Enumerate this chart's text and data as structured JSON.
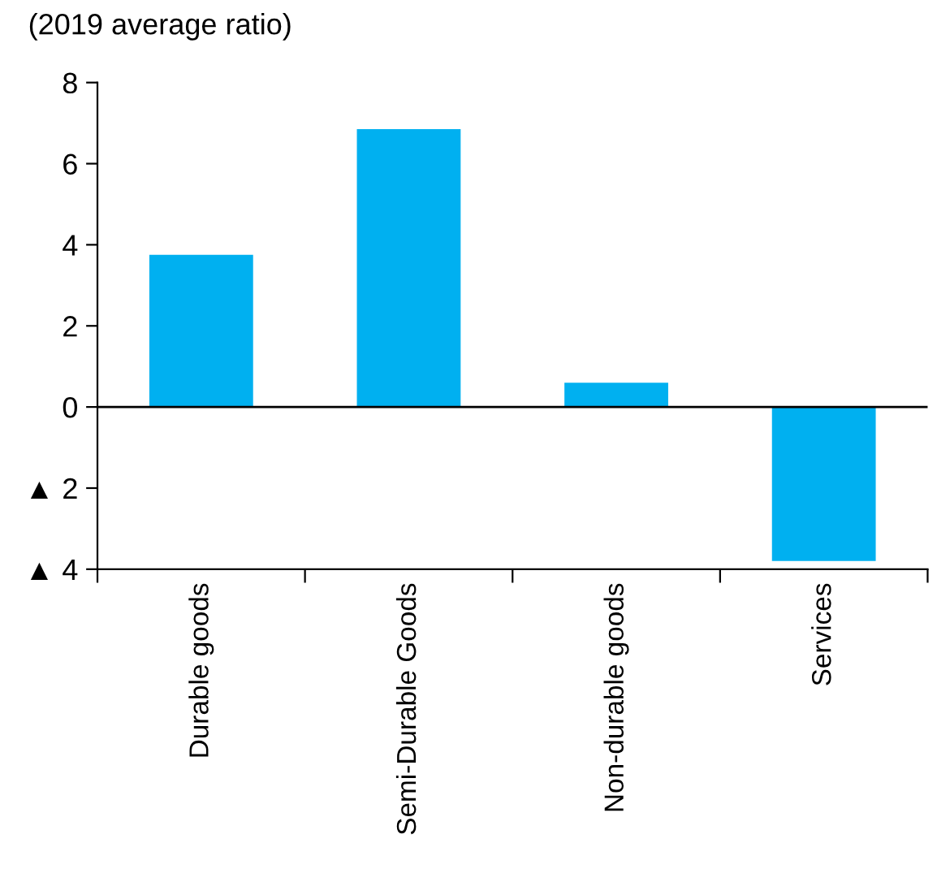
{
  "chart_data": {
    "type": "bar",
    "ylabel": "(2019 average ratio)",
    "categories": [
      "Durable goods",
      "Semi-Durable Goods",
      "Non-durable goods",
      "Services"
    ],
    "values": [
      3.75,
      6.85,
      0.6,
      -3.8
    ],
    "color": "#00b0f0",
    "ylim": [
      -4,
      8
    ],
    "yticks": [
      {
        "value": -4,
        "label": "▲ 4"
      },
      {
        "value": -2,
        "label": "▲ 2"
      },
      0,
      2,
      4,
      6,
      8
    ],
    "ref_lines": [
      {
        "axis": "y",
        "value": 0,
        "color": "#000000"
      }
    ],
    "grid": false,
    "legend": false
  }
}
